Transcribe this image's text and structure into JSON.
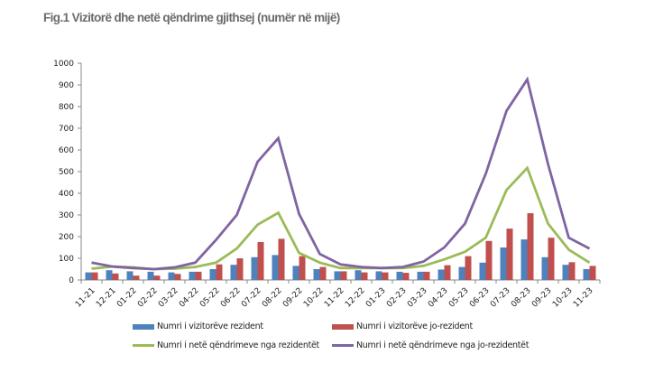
{
  "chart_data": {
    "type": "bar",
    "title": "Fig.1 Vizitorë dhe netë qëndrime gjithsej (numër në mijë)",
    "xlabel": "",
    "ylabel": "",
    "ylim": [
      0,
      1000
    ],
    "yticks": [
      0,
      100,
      200,
      300,
      400,
      500,
      600,
      700,
      800,
      900,
      1000
    ],
    "grid": false,
    "legend_position": "bottom",
    "categories": [
      "11-21",
      "12-21",
      "01-22",
      "02-22",
      "03-22",
      "04-22",
      "05-22",
      "06-22",
      "07-22",
      "08-22",
      "09-22",
      "10-22",
      "11-22",
      "12-22",
      "01-23",
      "02-23",
      "03-23",
      "04-23",
      "05-23",
      "06-23",
      "07-23",
      "08-23",
      "09-23",
      "10-23",
      "11-23"
    ],
    "series": [
      {
        "name": "Numri i vizitorëve rezident",
        "kind": "bar",
        "color": "#4f81bd",
        "values": [
          35,
          45,
          40,
          38,
          35,
          38,
          50,
          70,
          105,
          115,
          65,
          50,
          40,
          45,
          40,
          38,
          38,
          48,
          60,
          80,
          150,
          187,
          105,
          70,
          50
        ]
      },
      {
        "name": "Numri i vizitorëve jo-rezident",
        "kind": "bar",
        "color": "#c0504d",
        "values": [
          35,
          30,
          20,
          20,
          28,
          38,
          72,
          100,
          175,
          190,
          110,
          60,
          40,
          35,
          35,
          33,
          38,
          68,
          110,
          180,
          237,
          308,
          195,
          82,
          65
        ]
      },
      {
        "name": "Numri i netë qëndrimeve nga rezidentët",
        "kind": "line",
        "color": "#9bbb59",
        "values": [
          52,
          62,
          58,
          50,
          52,
          60,
          80,
          145,
          255,
          310,
          125,
          80,
          55,
          55,
          55,
          55,
          65,
          95,
          130,
          195,
          415,
          517,
          260,
          140,
          80
        ]
      },
      {
        "name": "Numri i netë qëndrimeve nga jo-rezidentët",
        "kind": "line",
        "color": "#8064a2",
        "values": [
          80,
          62,
          55,
          50,
          58,
          80,
          185,
          300,
          545,
          654,
          305,
          120,
          72,
          60,
          55,
          60,
          85,
          150,
          260,
          490,
          780,
          925,
          535,
          195,
          145
        ]
      }
    ]
  }
}
